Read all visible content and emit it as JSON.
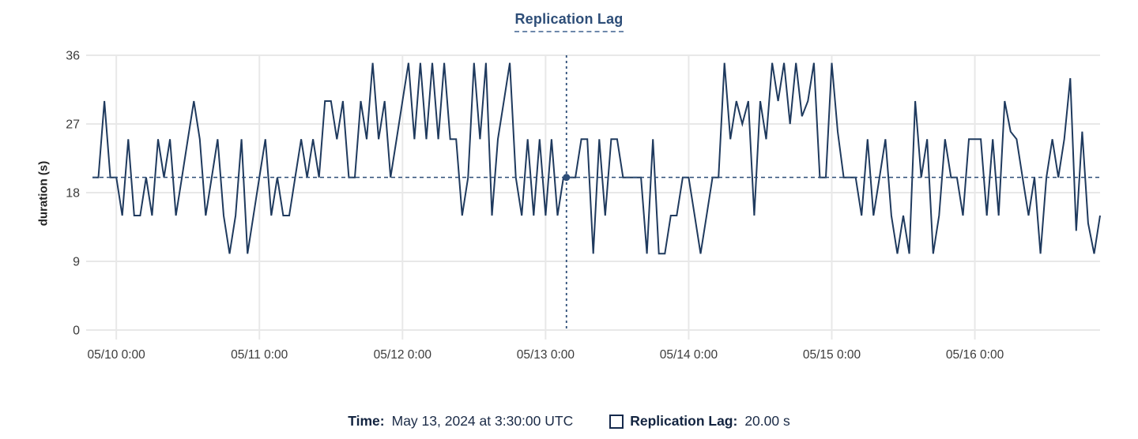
{
  "chart_data": {
    "type": "line",
    "title": "Replication Lag",
    "ylabel": "duration (s)",
    "ylim": [
      0,
      36
    ],
    "yticks": [
      0,
      9,
      18,
      27,
      36
    ],
    "grid": true,
    "x_unit": "hours",
    "x_start": "05/09 20:00",
    "xticks": [
      {
        "label": "05/10 0:00",
        "hour": 4
      },
      {
        "label": "05/11 0:00",
        "hour": 28
      },
      {
        "label": "05/12 0:00",
        "hour": 52
      },
      {
        "label": "05/13 0:00",
        "hour": 76
      },
      {
        "label": "05/14 0:00",
        "hour": 100
      },
      {
        "label": "05/15 0:00",
        "hour": 124
      },
      {
        "label": "05/16 0:00",
        "hour": 148
      }
    ],
    "series": [
      {
        "name": "Replication Lag",
        "color": "#1f3a5e",
        "interval_hours": 1,
        "values": [
          20,
          20,
          30,
          20,
          20,
          15,
          25,
          15,
          15,
          20,
          15,
          25,
          20,
          25,
          15,
          20,
          25,
          30,
          25,
          15,
          20,
          25,
          15,
          10,
          15,
          25,
          10,
          15,
          20,
          25,
          15,
          20,
          15,
          15,
          20,
          25,
          20,
          25,
          20,
          30,
          30,
          25,
          30,
          20,
          20,
          30,
          25,
          35,
          25,
          30,
          20,
          25,
          30,
          35,
          25,
          35,
          25,
          35,
          25,
          35,
          25,
          25,
          15,
          20,
          35,
          25,
          35,
          15,
          25,
          30,
          35,
          20,
          15,
          25,
          15,
          25,
          15,
          25,
          15,
          20,
          20,
          20,
          25,
          25,
          10,
          25,
          15,
          25,
          25,
          20,
          20,
          20,
          20,
          10,
          25,
          10,
          10,
          15,
          15,
          20,
          20,
          15,
          10,
          15,
          20,
          20,
          35,
          25,
          30,
          27,
          30,
          15,
          30,
          25,
          35,
          30,
          35,
          27,
          35,
          28,
          30,
          35,
          20,
          20,
          35,
          26,
          20,
          20,
          20,
          15,
          25,
          15,
          20,
          25,
          15,
          10,
          15,
          10,
          30,
          20,
          25,
          10,
          15,
          25,
          20,
          20,
          15,
          25,
          25,
          25,
          15,
          25,
          15,
          30,
          26,
          25,
          20,
          15,
          20,
          10,
          20,
          25,
          20,
          25,
          33,
          13,
          26,
          14,
          10,
          15
        ]
      }
    ],
    "crosshair": {
      "hour": 79.5,
      "value": 20,
      "time_label": "May 13, 2024 at 3:30:00 UTC"
    }
  },
  "colors": {
    "line": "#1f3a5e",
    "accent": "#2e4e78",
    "crosshair": "#2e4e78",
    "grid": "#e8e8e8",
    "axis_text": "#3b3b3b",
    "footer_text": "#132440"
  },
  "footer": {
    "time_label": "Time:",
    "time_value": "May 13, 2024 at 3:30:00 UTC",
    "series_label": "Replication Lag:",
    "series_value": "20.00 s"
  }
}
